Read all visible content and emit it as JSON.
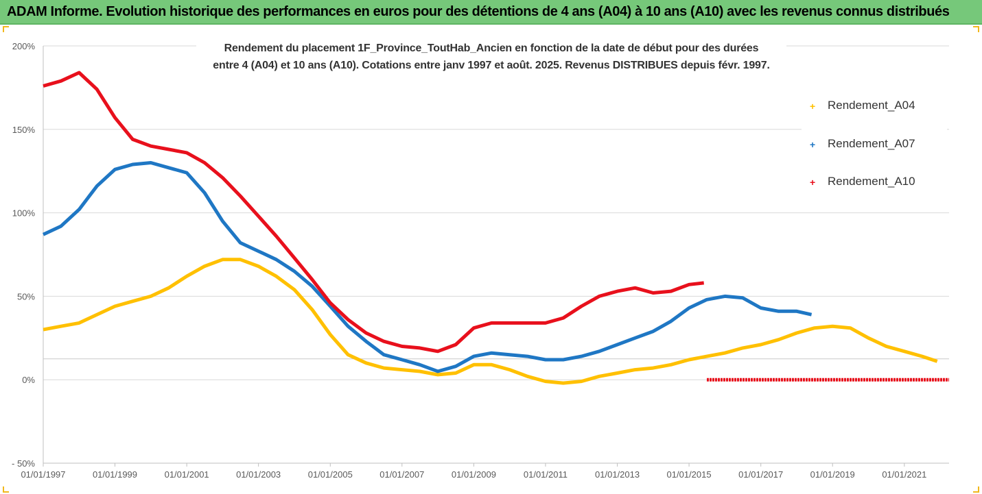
{
  "banner": {
    "title": "ADAM Informe. Evolution historique des performances en euros pour des détentions de 4 ans (A04) à 10 ans (A10) avec les revenus connus distribués"
  },
  "colors": {
    "banner": "#76c87a",
    "A04": "#ffc000",
    "A07": "#1f77c4",
    "A10": "#e8101c",
    "grid": "#d9d9d9"
  },
  "chart_data": {
    "type": "line",
    "title_lines": [
      "Rendement du placement 1F_Province_ToutHab_Ancien en fonction de la date de début pour des durées",
      "entre 4 (A04) et 10 ans (A10). Cotations entre janv 1997 et août. 2025. Revenus DISTRIBUES depuis févr. 1997."
    ],
    "xlabel": "",
    "ylabel": "",
    "x_range": [
      "1997-01-01",
      "2022-04-01"
    ],
    "x_tick_labels": [
      "01/01/1997",
      "01/01/1999",
      "01/01/2001",
      "01/01/2003",
      "01/01/2005",
      "01/01/2007",
      "01/01/2009",
      "01/01/2011",
      "01/01/2013",
      "01/01/2015",
      "01/01/2017",
      "01/01/2019",
      "01/01/2021"
    ],
    "y_range": [
      -50,
      200
    ],
    "y_tick_labels": [
      "- 50%",
      "0%",
      "50%",
      "100%",
      "150%",
      "200%"
    ],
    "grid": "horizontal",
    "legend_position": "right",
    "series": [
      {
        "name": "Rendement_A04",
        "color": "#ffc000",
        "points": [
          [
            "1997-01-01",
            30
          ],
          [
            "1997-07-01",
            32
          ],
          [
            "1998-01-01",
            34
          ],
          [
            "1998-07-01",
            39
          ],
          [
            "1999-01-01",
            44
          ],
          [
            "1999-07-01",
            47
          ],
          [
            "2000-01-01",
            50
          ],
          [
            "2000-07-01",
            55
          ],
          [
            "2001-01-01",
            62
          ],
          [
            "2001-07-01",
            68
          ],
          [
            "2002-01-01",
            72
          ],
          [
            "2002-07-01",
            72
          ],
          [
            "2003-01-01",
            68
          ],
          [
            "2003-07-01",
            62
          ],
          [
            "2004-01-01",
            54
          ],
          [
            "2004-07-01",
            42
          ],
          [
            "2005-01-01",
            27
          ],
          [
            "2005-07-01",
            15
          ],
          [
            "2006-01-01",
            10
          ],
          [
            "2006-07-01",
            7
          ],
          [
            "2007-01-01",
            6
          ],
          [
            "2007-07-01",
            5
          ],
          [
            "2008-01-01",
            3
          ],
          [
            "2008-07-01",
            4
          ],
          [
            "2009-01-01",
            9
          ],
          [
            "2009-07-01",
            9
          ],
          [
            "2010-01-01",
            6
          ],
          [
            "2010-07-01",
            2
          ],
          [
            "2011-01-01",
            -1
          ],
          [
            "2011-07-01",
            -2
          ],
          [
            "2012-01-01",
            -1
          ],
          [
            "2012-07-01",
            2
          ],
          [
            "2013-01-01",
            4
          ],
          [
            "2013-07-01",
            6
          ],
          [
            "2014-01-01",
            7
          ],
          [
            "2014-07-01",
            9
          ],
          [
            "2015-01-01",
            12
          ],
          [
            "2015-07-01",
            14
          ],
          [
            "2016-01-01",
            16
          ],
          [
            "2016-07-01",
            19
          ],
          [
            "2017-01-01",
            21
          ],
          [
            "2017-07-01",
            24
          ],
          [
            "2018-01-01",
            28
          ],
          [
            "2018-07-01",
            31
          ],
          [
            "2019-01-01",
            32
          ],
          [
            "2019-07-01",
            31
          ],
          [
            "2020-01-01",
            25
          ],
          [
            "2020-07-01",
            20
          ],
          [
            "2021-01-01",
            17
          ],
          [
            "2021-07-01",
            14
          ],
          [
            "2021-12-01",
            11
          ]
        ]
      },
      {
        "name": "Rendement_A07",
        "color": "#1f77c4",
        "points": [
          [
            "1997-01-01",
            87
          ],
          [
            "1997-07-01",
            92
          ],
          [
            "1998-01-01",
            102
          ],
          [
            "1998-07-01",
            116
          ],
          [
            "1999-01-01",
            126
          ],
          [
            "1999-07-01",
            129
          ],
          [
            "2000-01-01",
            130
          ],
          [
            "2000-07-01",
            127
          ],
          [
            "2001-01-01",
            124
          ],
          [
            "2001-07-01",
            112
          ],
          [
            "2002-01-01",
            95
          ],
          [
            "2002-07-01",
            82
          ],
          [
            "2003-01-01",
            77
          ],
          [
            "2003-07-01",
            72
          ],
          [
            "2004-01-01",
            65
          ],
          [
            "2004-07-01",
            56
          ],
          [
            "2005-01-01",
            44
          ],
          [
            "2005-07-01",
            32
          ],
          [
            "2006-01-01",
            23
          ],
          [
            "2006-07-01",
            15
          ],
          [
            "2007-01-01",
            12
          ],
          [
            "2007-07-01",
            9
          ],
          [
            "2008-01-01",
            5
          ],
          [
            "2008-07-01",
            8
          ],
          [
            "2009-01-01",
            14
          ],
          [
            "2009-07-01",
            16
          ],
          [
            "2010-01-01",
            15
          ],
          [
            "2010-07-01",
            14
          ],
          [
            "2011-01-01",
            12
          ],
          [
            "2011-07-01",
            12
          ],
          [
            "2012-01-01",
            14
          ],
          [
            "2012-07-01",
            17
          ],
          [
            "2013-01-01",
            21
          ],
          [
            "2013-07-01",
            25
          ],
          [
            "2014-01-01",
            29
          ],
          [
            "2014-07-01",
            35
          ],
          [
            "2015-01-01",
            43
          ],
          [
            "2015-07-01",
            48
          ],
          [
            "2016-01-01",
            50
          ],
          [
            "2016-07-01",
            49
          ],
          [
            "2017-01-01",
            43
          ],
          [
            "2017-07-01",
            41
          ],
          [
            "2018-01-01",
            41
          ],
          [
            "2018-06-01",
            39
          ]
        ]
      },
      {
        "name": "Rendement_A10",
        "color": "#e8101c",
        "points": [
          [
            "1997-01-01",
            176
          ],
          [
            "1997-07-01",
            179
          ],
          [
            "1998-01-01",
            184
          ],
          [
            "1998-07-01",
            174
          ],
          [
            "1999-01-01",
            157
          ],
          [
            "1999-07-01",
            144
          ],
          [
            "2000-01-01",
            140
          ],
          [
            "2000-07-01",
            138
          ],
          [
            "2001-01-01",
            136
          ],
          [
            "2001-07-01",
            130
          ],
          [
            "2002-01-01",
            121
          ],
          [
            "2002-07-01",
            110
          ],
          [
            "2003-01-01",
            98
          ],
          [
            "2003-07-01",
            86
          ],
          [
            "2004-01-01",
            73
          ],
          [
            "2004-07-01",
            60
          ],
          [
            "2005-01-01",
            46
          ],
          [
            "2005-07-01",
            36
          ],
          [
            "2006-01-01",
            28
          ],
          [
            "2006-07-01",
            23
          ],
          [
            "2007-01-01",
            20
          ],
          [
            "2007-07-01",
            19
          ],
          [
            "2008-01-01",
            17
          ],
          [
            "2008-07-01",
            21
          ],
          [
            "2009-01-01",
            31
          ],
          [
            "2009-07-01",
            34
          ],
          [
            "2010-01-01",
            34
          ],
          [
            "2010-07-01",
            34
          ],
          [
            "2011-01-01",
            34
          ],
          [
            "2011-07-01",
            37
          ],
          [
            "2012-01-01",
            44
          ],
          [
            "2012-07-01",
            50
          ],
          [
            "2013-01-01",
            53
          ],
          [
            "2013-07-01",
            55
          ],
          [
            "2014-01-01",
            52
          ],
          [
            "2014-07-01",
            53
          ],
          [
            "2015-01-01",
            57
          ],
          [
            "2015-06-01",
            58
          ]
        ]
      },
      {
        "name": "",
        "color": "#e8101c",
        "points": [
          [
            "2015-07-01",
            0
          ],
          [
            "2022-04-01",
            0
          ]
        ]
      }
    ]
  }
}
